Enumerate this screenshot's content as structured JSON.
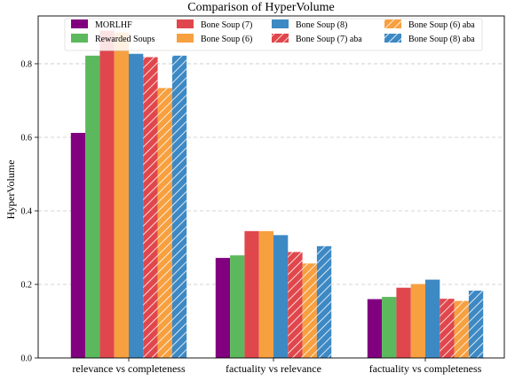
{
  "chart_data": {
    "type": "bar",
    "title": "Comparison of HyperVolume",
    "xlabel": "",
    "ylabel": "HyperVolume",
    "ylim": [
      0,
      0.93
    ],
    "yticks": [
      "0.0",
      "0.2",
      "0.4",
      "0.6",
      "0.8"
    ],
    "grid": "horizontal dashed",
    "legend": "top-center, 4 columns",
    "categories": [
      "relevance vs completeness",
      "factuality vs relevance",
      "factuality vs completeness"
    ],
    "series": [
      {
        "name": "MORLHF",
        "color": "#800080",
        "hatched": false,
        "values": [
          0.612,
          0.272,
          0.16
        ]
      },
      {
        "name": "Rewarded Soups",
        "color": "#5cb85c",
        "hatched": false,
        "values": [
          0.822,
          0.279,
          0.166
        ]
      },
      {
        "name": "Bone Soup (7)",
        "color": "#e0474c",
        "hatched": false,
        "values": [
          0.89,
          0.345,
          0.191
        ]
      },
      {
        "name": "Bone Soup (6)",
        "color": "#f7a040",
        "hatched": false,
        "values": [
          0.885,
          0.345,
          0.201
        ]
      },
      {
        "name": "Bone Soup (8)",
        "color": "#3d89c4",
        "hatched": false,
        "values": [
          0.827,
          0.334,
          0.213
        ]
      },
      {
        "name": "Bone Soup (7) aba",
        "color": "#e0474c",
        "hatched": true,
        "values": [
          0.818,
          0.288,
          0.161
        ]
      },
      {
        "name": "Bone Soup (6) aba",
        "color": "#f7a040",
        "hatched": true,
        "values": [
          0.734,
          0.257,
          0.155
        ]
      },
      {
        "name": "Bone Soup (8) aba",
        "color": "#3d89c4",
        "hatched": true,
        "values": [
          0.822,
          0.304,
          0.183
        ]
      }
    ]
  }
}
